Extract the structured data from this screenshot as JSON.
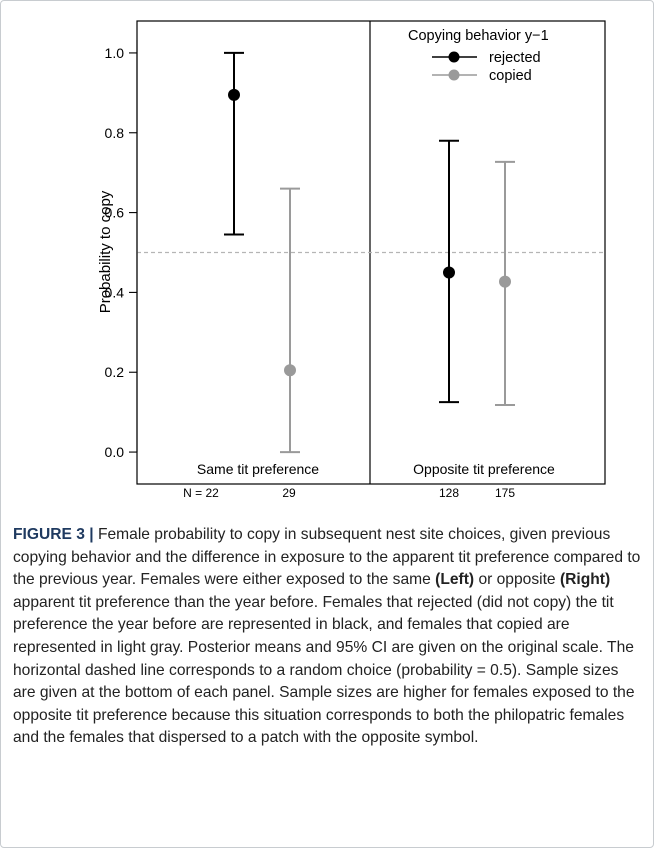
{
  "chart_data": {
    "type": "scatter",
    "ylabel": "Probability to copy",
    "ylim": [
      -0.08,
      1.08
    ],
    "yticks": [
      "0.0",
      "0.2",
      "0.4",
      "0.6",
      "0.8",
      "1.0"
    ],
    "reference_line": 0.5,
    "legend": {
      "title": "Copying behavior y−1",
      "placement": "top-right",
      "entries": [
        "rejected",
        "copied"
      ]
    },
    "series": [
      {
        "name": "rejected",
        "color": "#000000",
        "values": [
          0.895,
          0.45
        ],
        "ci_low": [
          0.545,
          0.125
        ],
        "ci_high": [
          1.0,
          0.78
        ]
      },
      {
        "name": "copied",
        "color": "#9a9a9a",
        "values": [
          0.205,
          0.427
        ],
        "ci_low": [
          0.0,
          0.118
        ],
        "ci_high": [
          0.66,
          0.727
        ]
      }
    ],
    "panels": [
      {
        "label": "Same tit preference",
        "n_prefix": "N = 22",
        "n_values": [
          "22",
          "29"
        ]
      },
      {
        "label": "Opposite tit preference",
        "n_prefix": "",
        "n_values": [
          "128",
          "175"
        ]
      }
    ]
  },
  "caption": {
    "figure_label": "FIGURE 3 |",
    "part1": " Female probability to copy in subsequent nest site choices, given previous copying behavior and the difference in exposure to the apparent tit preference compared to the previous year. Females were either exposed to the same ",
    "left_label": "(Left)",
    "part2": " or opposite ",
    "right_label": "(Right)",
    "part3": " apparent tit preference than the year before. Females that rejected (did not copy) the tit preference the year before are represented in black, and females that copied are represented in light gray. Posterior means and 95% CI are given on the original scale. The horizontal dashed line corresponds to a random choice (probability = 0.5). Sample sizes are given at the bottom of each panel. Sample sizes are higher for females exposed to the opposite tit preference because this situation corresponds to both the philopatric females and the females that dispersed to a patch with the opposite symbol."
  }
}
